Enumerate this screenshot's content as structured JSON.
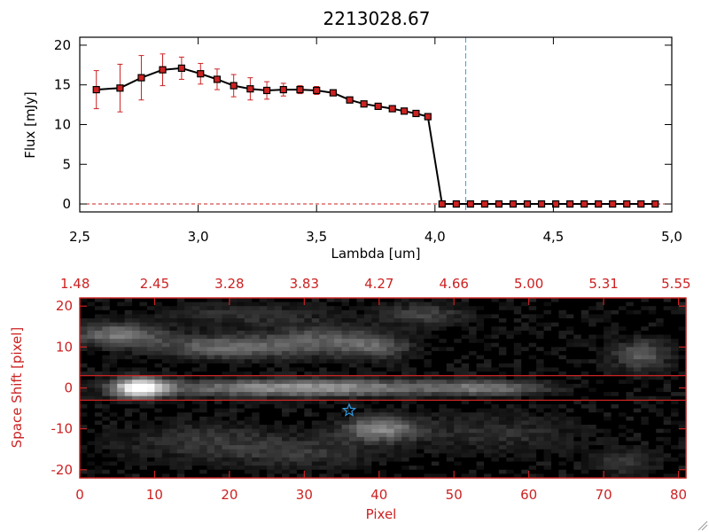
{
  "chart_data": [
    {
      "type": "line",
      "title": "2213028.67",
      "xlabel": "Lambda [um]",
      "ylabel": "Flux [mJy]",
      "xlim": [
        2.5,
        5.0
      ],
      "ylim": [
        -1,
        21
      ],
      "x_ticks": [
        2.5,
        3.0,
        3.5,
        4.0,
        4.5,
        5.0
      ],
      "x_tick_labels": [
        "2,5",
        "3,0",
        "3,5",
        "4,0",
        "4,5",
        "5,0"
      ],
      "y_ticks": [
        0,
        5,
        10,
        15,
        20
      ],
      "y_tick_labels": [
        "0",
        "5",
        "10",
        "15",
        "20"
      ],
      "grid": false,
      "series": [
        {
          "x": [
            2.57,
            2.67,
            2.76,
            2.85,
            2.93,
            3.01,
            3.08,
            3.15,
            3.22,
            3.29,
            3.36,
            3.43,
            3.5,
            3.57,
            3.64,
            3.7,
            3.76,
            3.82,
            3.87,
            3.92,
            3.97,
            4.03,
            4.09,
            4.15,
            4.21,
            4.27,
            4.33,
            4.39,
            4.45,
            4.51,
            4.57,
            4.63,
            4.69,
            4.75,
            4.81,
            4.87,
            4.93
          ],
          "y": [
            14.4,
            14.6,
            15.9,
            16.9,
            17.1,
            16.4,
            15.7,
            14.9,
            14.5,
            14.3,
            14.4,
            14.4,
            14.3,
            14.0,
            13.1,
            12.6,
            12.3,
            12.0,
            11.7,
            11.4,
            11.0,
            0,
            0,
            0,
            0,
            0,
            0,
            0,
            0,
            0,
            0,
            0,
            0,
            0,
            0,
            0,
            0
          ],
          "yerr": [
            2.4,
            3.0,
            2.8,
            2.0,
            1.4,
            1.3,
            1.3,
            1.4,
            1.4,
            1.1,
            0.8,
            0.5,
            0.5,
            0.3,
            0.3,
            0.3,
            0.3,
            0.3,
            0.3,
            0.3,
            0.3,
            0,
            0,
            0,
            0,
            0,
            0,
            0,
            0,
            0,
            0,
            0,
            0,
            0,
            0,
            0,
            0
          ],
          "color": "#000000",
          "marker_color": "#cc2222"
        }
      ],
      "vline": {
        "x": 4.13,
        "color": "#33aacc",
        "style": "dashed"
      },
      "hline": {
        "y": 0,
        "color": "#cc2222",
        "style": "dashed"
      }
    },
    {
      "type": "heatmap",
      "xlabel": "Pixel",
      "ylabel": "Space Shift [pixel]",
      "xlim": [
        0,
        81
      ],
      "ylim": [
        -22,
        22
      ],
      "x_ticks": [
        0,
        10,
        20,
        30,
        40,
        50,
        60,
        70,
        80
      ],
      "x_tick_labels": [
        "0",
        "10",
        "20",
        "30",
        "40",
        "50",
        "60",
        "70",
        "80"
      ],
      "y_ticks": [
        -20,
        -10,
        0,
        10,
        20
      ],
      "y_tick_labels": [
        "-20",
        "-10",
        "0",
        "10",
        "20"
      ],
      "top_axis_labels": [
        "1.48",
        "2.45",
        "3.28",
        "3.83",
        "4.27",
        "4.66",
        "5.00",
        "5.31",
        "5.55"
      ],
      "color": "#cc2222",
      "hlines": [
        3,
        -3
      ],
      "star": {
        "x": 36,
        "y": -5.5,
        "color": "#3399dd"
      },
      "blobs": [
        {
          "x": 8,
          "y": 0,
          "sx": 3.5,
          "sy": 2.5,
          "v": 0.95
        },
        {
          "x": 30,
          "y": 0,
          "sx": 20,
          "sy": 2.2,
          "v": 0.6
        },
        {
          "x": 55,
          "y": 0,
          "sx": 8,
          "sy": 1.8,
          "v": 0.35
        },
        {
          "x": 5,
          "y": 13,
          "sx": 6,
          "sy": 3,
          "v": 0.45
        },
        {
          "x": 20,
          "y": 10,
          "sx": 10,
          "sy": 3,
          "v": 0.42
        },
        {
          "x": 33,
          "y": 12,
          "sx": 7,
          "sy": 4,
          "v": 0.3
        },
        {
          "x": 40,
          "y": 10,
          "sx": 5,
          "sy": 3,
          "v": 0.3
        },
        {
          "x": 22,
          "y": 18,
          "sx": 10,
          "sy": 3,
          "v": 0.2
        },
        {
          "x": 46,
          "y": 18,
          "sx": 6,
          "sy": 3,
          "v": 0.25
        },
        {
          "x": 75,
          "y": 8,
          "sx": 4,
          "sy": 4,
          "v": 0.35
        },
        {
          "x": 40,
          "y": -10,
          "sx": 5,
          "sy": 3,
          "v": 0.5
        },
        {
          "x": 16,
          "y": -13,
          "sx": 12,
          "sy": 5,
          "v": 0.2
        },
        {
          "x": 30,
          "y": -16,
          "sx": 10,
          "sy": 4,
          "v": 0.18
        },
        {
          "x": 55,
          "y": -11,
          "sx": 12,
          "sy": 5,
          "v": 0.18
        },
        {
          "x": 73,
          "y": -18,
          "sx": 4,
          "sy": 3,
          "v": 0.25
        }
      ]
    }
  ]
}
